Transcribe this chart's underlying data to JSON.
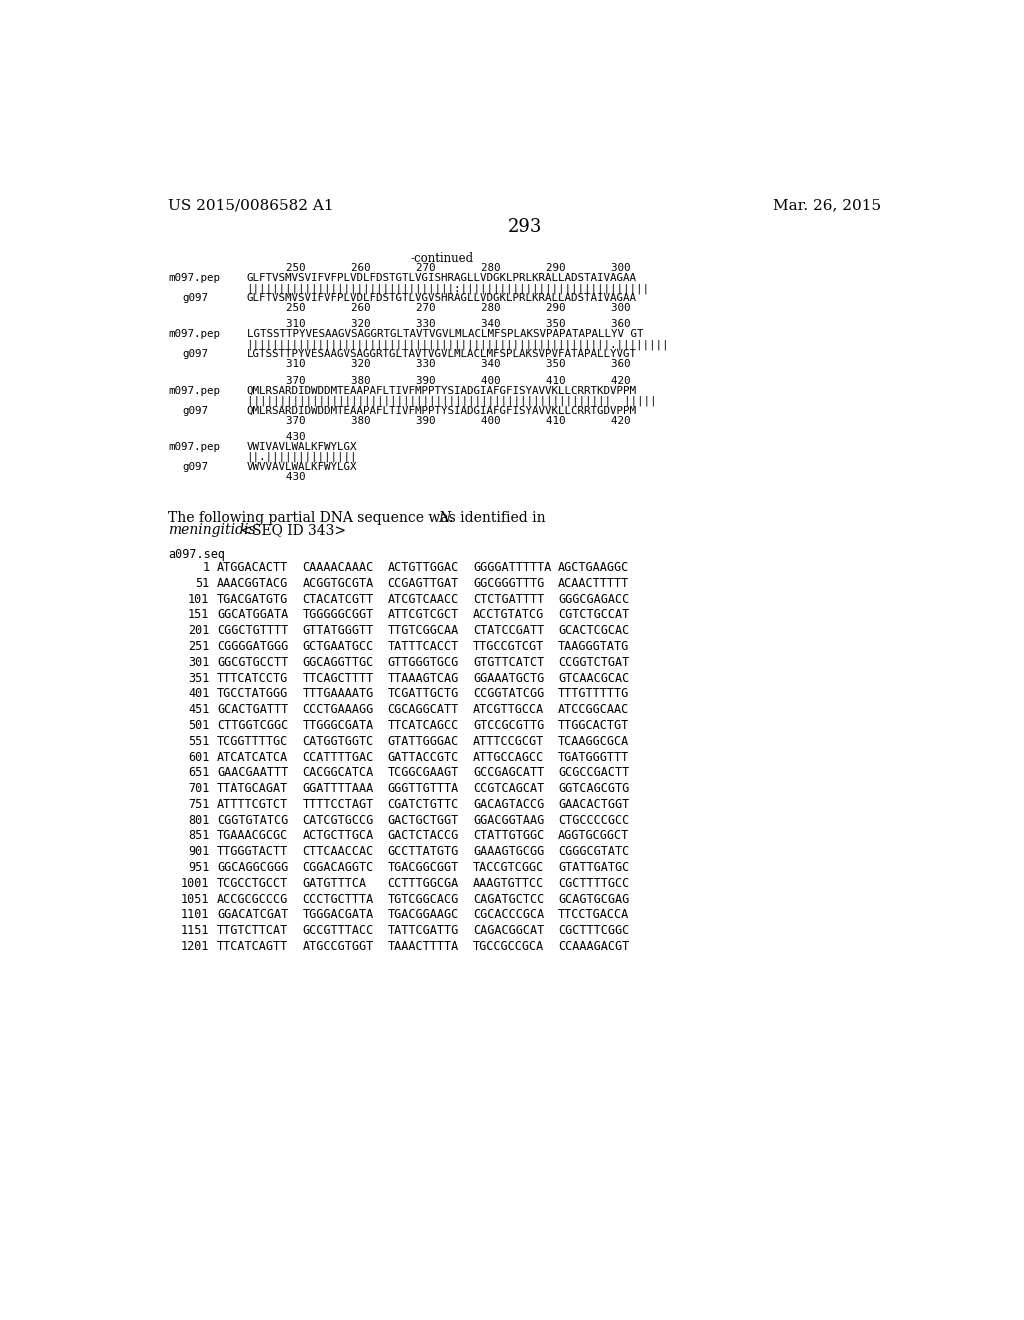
{
  "header_left": "US 2015/0086582 A1",
  "header_right": "Mar. 26, 2015",
  "page_number": "293",
  "continued_label": "-continued",
  "background_color": "#ffffff",
  "text_color": "#000000",
  "blocks": [
    {
      "nums_top": "      250       260       270       280       290       300",
      "m_seq": "GLFTVSMVSVIFVFPLVDLFDSTGTLVGISHRAGLLVDGKLPRLKRALLADSTAIVAGAA",
      "match": "||||||||||||||||||||||||||||||||:|||||||||||||||||||||||||||||",
      "g_seq": "GLFTVSMVSVIFVFPLVDLFDSTGTLVGVSHRAGLLVDGKLPRLKRALLADSTAIVAGAA",
      "nums_bot": "      250       260       270       280       290       300"
    },
    {
      "nums_top": "      310       320       330       340       350       360",
      "m_seq": "LGTSSTTPYVESAAGVSAGGRTGLTAVTVGVLMLACLMFSPLAKSVPAPATAPALLYV GT",
      "match": "||||||||||||||||||||||||||||||||||||||||||||||||||||||||.||||||||",
      "g_seq": "LGTSSTTPYVESAAGVSAGGRTGLTAVTVGVLMLACLMFSPLAKSVPVFATAPALLYVGT",
      "nums_bot": "      310       320       330       340       350       360"
    },
    {
      "nums_top": "      370       380       390       400       410       420",
      "m_seq": "QMLRSARDIDWDDMTEAAPAFLTIVFMPPTYSIADGIAFGFISYAVVKLLCRRTKDVPPM",
      "match": "||||||||||||||||||||||||||||||||||||||||||||||||||||||||  |||||",
      "g_seq": "QMLRSARDIDWDDMTEAAPAFLTIVFMPPTYSIADGIAFGFISYAVVKLLCRRTGDVPPM",
      "nums_bot": "      370       380       390       400       410       420"
    },
    {
      "nums_top": "      430",
      "m_seq": "VWIVAVLWALKFWYLGX",
      "match": "||.||||||||||||||",
      "g_seq": "VWVVAVLWALKFWYLGX",
      "nums_bot": "      430"
    }
  ],
  "dna_rows": [
    [
      "1",
      "ATGGACACTT",
      "CAAAACAAAC",
      "ACTGTTGGAC",
      "GGGGATTTTTA",
      "AGCTGAAGGC"
    ],
    [
      "51",
      "AAACGGTACG",
      "ACGGTGCGTA",
      "CCGAGTTGAT",
      "GGCGGGTTTG",
      "ACAACTTTTT"
    ],
    [
      "101",
      "TGACGATGTG",
      "CTACATCGTT",
      "ATCGTCAACC",
      "CTCTGATTTT",
      "GGGCGAGACC"
    ],
    [
      "151",
      "GGCATGGATA",
      "TGGGGGCGGT",
      "ATTCGTCGCT",
      "ACCTGTATCG",
      "CGTCTGCCAT"
    ],
    [
      "201",
      "CGGCTGTTTT",
      "GTTATGGGTT",
      "TTGTCGGCAA",
      "CTATCCGATT",
      "GCACTCGCAC"
    ],
    [
      "251",
      "CGGGGATGGG",
      "GCTGAATGCC",
      "TATTTCACCT",
      "TTGCCGTCGT",
      "TAAGGGTATG"
    ],
    [
      "301",
      "GGCGTGCCTT",
      "GGCAGGTTGC",
      "GTTGGGTGCG",
      "GTGTTCATCT",
      "CCGGTCTGAT"
    ],
    [
      "351",
      "TTTCATCCTG",
      "TTCAGCTTTT",
      "TTAAAGTCAG",
      "GGAAATGCTG",
      "GTCAACGCAC"
    ],
    [
      "401",
      "TGCCTATGGG",
      "TTTGAAAATG",
      "TCGATTGCTG",
      "CCGGTATCGG",
      "TTTGTTTTTG"
    ],
    [
      "451",
      "GCACTGATTT",
      "CCCTGAAAGG",
      "CGCAGGCATT",
      "ATCGTTGCCA",
      "ATCCGGCAAC"
    ],
    [
      "501",
      "CTTGGTCGGC",
      "TTGGGCGATA",
      "TTCATCAGCC",
      "GTCCGCGTTG",
      "TTGGCACTGT"
    ],
    [
      "551",
      "TCGGTTTTGC",
      "CATGGTGGTC",
      "GTATTGGGAC",
      "ATTTCCGCGT",
      "TCAAGGCGCA"
    ],
    [
      "601",
      "ATCATCATCA",
      "CCATTTTGAC",
      "GATTACCGTC",
      "ATTGCCAGCC",
      "TGATGGGTTT"
    ],
    [
      "651",
      "GAACGAATTT",
      "CACGGCATCA",
      "TCGGCGAAGT",
      "GCCGAGCATT",
      "GCGCCGACTT"
    ],
    [
      "701",
      "TTATGCAGAT",
      "GGATTTTAAA",
      "GGGTTGTTTA",
      "CCGTCAGCAT",
      "GGTCAGCGTG"
    ],
    [
      "751",
      "ATTTTCGTCT",
      "TTTTCCTAGT",
      "CGATCTGTTC",
      "GACAGTACCG",
      "GAACACTGGT"
    ],
    [
      "801",
      "CGGTGTATCG",
      "CATCGTGCCG",
      "GACTGCTGGT",
      "GGACGGTAAG",
      "CTGCCCCGCC"
    ],
    [
      "851",
      "TGAAACGCGC",
      "ACTGCTTGCA",
      "GACTCTACCG",
      "CTATTGTGGC",
      "AGGTGCGGCT"
    ],
    [
      "901",
      "TTGGGTACTT",
      "CTTCAACCAC",
      "GCCTTATGTG",
      "GAAAGTGCGG",
      "CGGGCGTATC"
    ],
    [
      "951",
      "GGCAGGCGGG",
      "CGGACAGGTC",
      "TGACGGCGGT",
      "TACCGTCGGC",
      "GTATTGATGC"
    ],
    [
      "1001",
      "TCGCCTGCCT",
      "GATGTTTCA",
      "CCTTTGGCGA",
      "AAAGTGTTCC",
      "CGCTTTTGCC"
    ],
    [
      "1051",
      "ACCGCGCCCG",
      "CCCTGCTTTA",
      "TGTCGGCACG",
      "CAGATGCTCC",
      "GCAGTGCGAG"
    ],
    [
      "1101",
      "GGACATCGAT",
      "TGGGACGATA",
      "TGACGGAAGC",
      "CGCACCCGCA",
      "TTCCTGACCA"
    ],
    [
      "1151",
      "TTGTCTTCAT",
      "GCCGTTTACC",
      "TATTCGATTG",
      "CAGACGGCAT",
      "CGCTTTCGGC"
    ],
    [
      "1201",
      "TTCATCAGTT",
      "ATGCCGTGGT",
      "TAAACTTTTA",
      "TGCCGCCGCA",
      "CCAAAGACGT"
    ]
  ]
}
